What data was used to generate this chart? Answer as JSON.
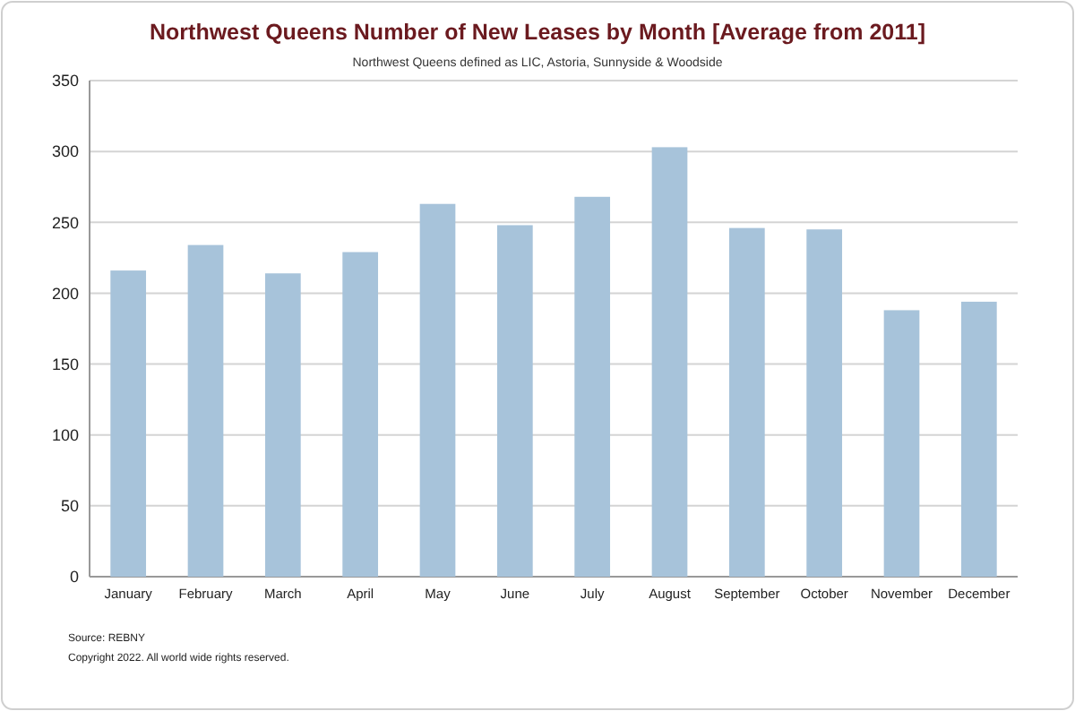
{
  "chart_data": {
    "type": "bar",
    "title": "Northwest Queens Number of New Leases by Month [Average from 2011]",
    "subtitle": "Northwest Queens defined as LIC, Astoria, Sunnyside & Woodside",
    "categories": [
      "January",
      "February",
      "March",
      "April",
      "May",
      "June",
      "July",
      "August",
      "September",
      "October",
      "November",
      "December"
    ],
    "values": [
      216,
      234,
      214,
      229,
      263,
      248,
      268,
      303,
      246,
      245,
      188,
      194
    ],
    "color": "#a7c3da",
    "ylim": [
      0,
      350
    ],
    "yticks": [
      0,
      50,
      100,
      150,
      200,
      250,
      300,
      350
    ],
    "grid": "y",
    "annotations": [
      "Source: REBNY",
      "Copyright 2022. All world wide rights reserved."
    ]
  }
}
